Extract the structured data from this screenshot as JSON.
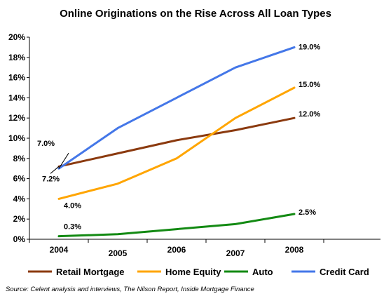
{
  "chart_data": {
    "type": "line",
    "title": "Online Originations on the Rise Across All Loan Types",
    "xlabel": "",
    "ylabel": "",
    "x": [
      "2004",
      "2005",
      "2006",
      "2007",
      "2008"
    ],
    "yticks": [
      "0%",
      "2%",
      "4%",
      "6%",
      "8%",
      "10%",
      "12%",
      "14%",
      "16%",
      "18%",
      "20%"
    ],
    "ylim": [
      0,
      20
    ],
    "grid": false,
    "legend_position": "bottom",
    "series": [
      {
        "name": "Retail Mortgage",
        "color": "#8B3A0F",
        "values": [
          7.2,
          8.5,
          9.8,
          10.8,
          12.0
        ]
      },
      {
        "name": "Home Equity",
        "color": "#FFA500",
        "values": [
          4.0,
          5.5,
          8.0,
          12.0,
          15.0
        ]
      },
      {
        "name": "Auto",
        "color": "#138A13",
        "values": [
          0.3,
          0.5,
          1.0,
          1.5,
          2.5
        ]
      },
      {
        "name": "Credit Card",
        "color": "#4477E8",
        "values": [
          7.0,
          11.0,
          14.0,
          17.0,
          19.0
        ]
      }
    ],
    "data_labels": [
      {
        "series": 3,
        "point": 0,
        "text": "7.0%"
      },
      {
        "series": 0,
        "point": 0,
        "text": "7.2%"
      },
      {
        "series": 1,
        "point": 0,
        "text": "4.0%"
      },
      {
        "series": 2,
        "point": 0,
        "text": "0.3%"
      },
      {
        "series": 3,
        "point": 4,
        "text": "19.0%"
      },
      {
        "series": 1,
        "point": 4,
        "text": "15.0%"
      },
      {
        "series": 0,
        "point": 4,
        "text": "12.0%"
      },
      {
        "series": 2,
        "point": 4,
        "text": "2.5%"
      }
    ]
  },
  "source_note": "Source: Celent analysis and interviews, The Nilson Report, Inside Mortgage Finance"
}
